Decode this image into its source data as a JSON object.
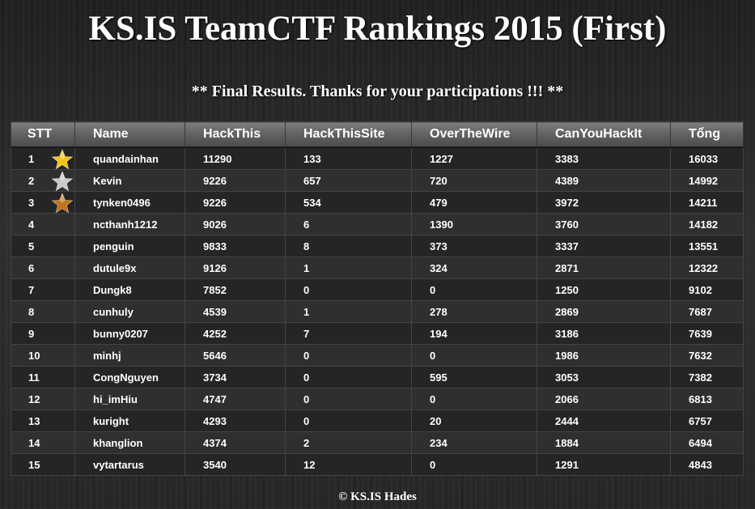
{
  "page": {
    "title": "KS.IS TeamCTF Rankings 2015 (First)",
    "subtitle": "** Final Results. Thanks for your participations !!! **",
    "footer": "© KS.IS Hades"
  },
  "colors": {
    "gold": "#f2c418",
    "silver": "#c9c9c9",
    "bronze": "#c2741a",
    "header_bg": "#6a6a6a",
    "row_bg": "#252525"
  },
  "table": {
    "headers": [
      "STT",
      "Name",
      "HackThis",
      "HackThisSite",
      "OverTheWire",
      "CanYouHackIt",
      "Tổng"
    ],
    "rows": [
      {
        "stt": "1",
        "name": "quandainhan",
        "hackthis": "11290",
        "hackthissite": "133",
        "overthewire": "1227",
        "canyouhackit": "3383",
        "total": "16033",
        "medal": "gold-star-icon"
      },
      {
        "stt": "2",
        "name": "Kevin",
        "hackthis": "9226",
        "hackthissite": "657",
        "overthewire": "720",
        "canyouhackit": "4389",
        "total": "14992",
        "medal": "silver-star-icon"
      },
      {
        "stt": "3",
        "name": "tynken0496",
        "hackthis": "9226",
        "hackthissite": "534",
        "overthewire": "479",
        "canyouhackit": "3972",
        "total": "14211",
        "medal": "bronze-star-icon"
      },
      {
        "stt": "4",
        "name": "ncthanh1212",
        "hackthis": "9026",
        "hackthissite": "6",
        "overthewire": "1390",
        "canyouhackit": "3760",
        "total": "14182"
      },
      {
        "stt": "5",
        "name": "penguin",
        "hackthis": "9833",
        "hackthissite": "8",
        "overthewire": "373",
        "canyouhackit": "3337",
        "total": "13551"
      },
      {
        "stt": "6",
        "name": "dutule9x",
        "hackthis": "9126",
        "hackthissite": "1",
        "overthewire": "324",
        "canyouhackit": "2871",
        "total": "12322"
      },
      {
        "stt": "7",
        "name": "Dungk8",
        "hackthis": "7852",
        "hackthissite": "0",
        "overthewire": "0",
        "canyouhackit": "1250",
        "total": "9102"
      },
      {
        "stt": "8",
        "name": "cunhuly",
        "hackthis": "4539",
        "hackthissite": "1",
        "overthewire": "278",
        "canyouhackit": "2869",
        "total": "7687"
      },
      {
        "stt": "9",
        "name": "bunny0207",
        "hackthis": "4252",
        "hackthissite": "7",
        "overthewire": "194",
        "canyouhackit": "3186",
        "total": "7639"
      },
      {
        "stt": "10",
        "name": "minhj",
        "hackthis": "5646",
        "hackthissite": "0",
        "overthewire": "0",
        "canyouhackit": "1986",
        "total": "7632"
      },
      {
        "stt": "11",
        "name": "CongNguyen",
        "hackthis": "3734",
        "hackthissite": "0",
        "overthewire": "595",
        "canyouhackit": "3053",
        "total": "7382"
      },
      {
        "stt": "12",
        "name": "hi_imHiu",
        "hackthis": "4747",
        "hackthissite": "0",
        "overthewire": "0",
        "canyouhackit": "2066",
        "total": "6813"
      },
      {
        "stt": "13",
        "name": "kuright",
        "hackthis": "4293",
        "hackthissite": "0",
        "overthewire": "20",
        "canyouhackit": "2444",
        "total": "6757"
      },
      {
        "stt": "14",
        "name": "khanglion",
        "hackthis": "4374",
        "hackthissite": "2",
        "overthewire": "234",
        "canyouhackit": "1884",
        "total": "6494"
      },
      {
        "stt": "15",
        "name": "vytartarus",
        "hackthis": "3540",
        "hackthissite": "12",
        "overthewire": "0",
        "canyouhackit": "1291",
        "total": "4843"
      }
    ]
  }
}
